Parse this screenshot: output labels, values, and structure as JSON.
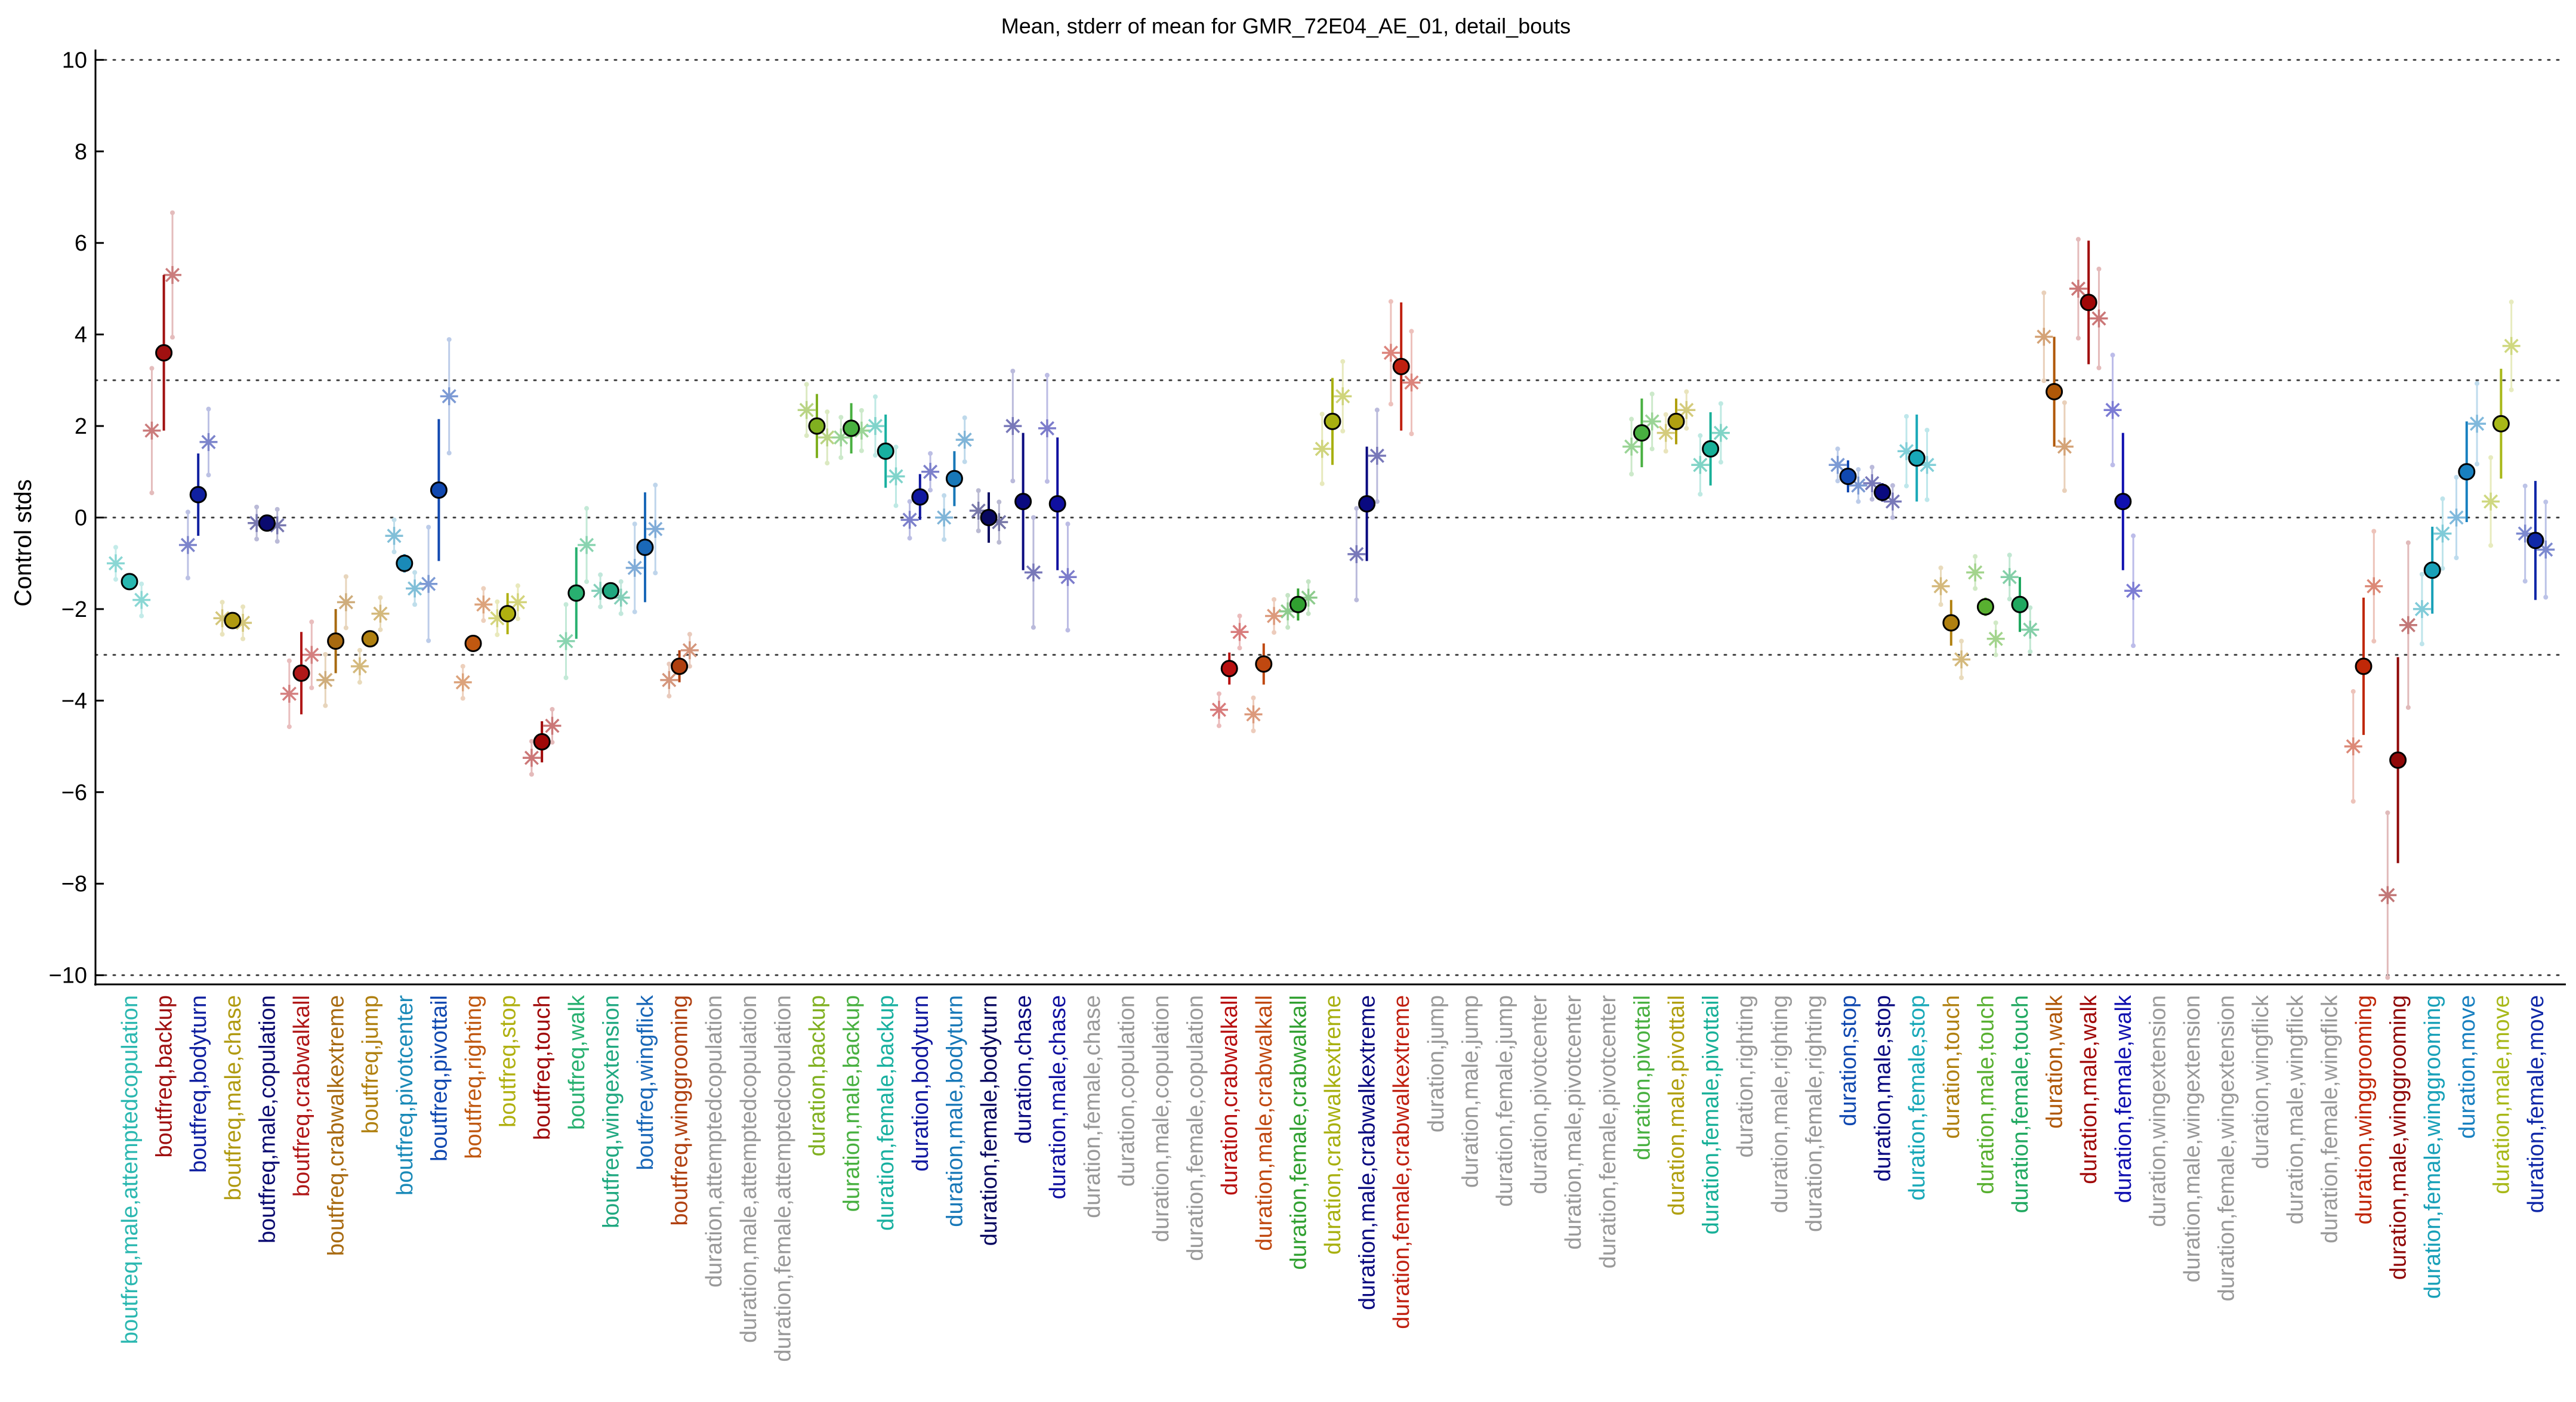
{
  "chart_data": {
    "type": "scatter",
    "title": "Mean, stderr of mean for GMR_72E04_AE_01, detail_bouts",
    "ylabel": "Control stds",
    "xlabel": "",
    "ylim": [
      -10.2,
      10.2
    ],
    "yticks": [
      -10,
      -8,
      -6,
      -4,
      -2,
      0,
      2,
      4,
      6,
      8,
      10
    ],
    "reference_lines": [
      -10,
      -3,
      0,
      3,
      10
    ],
    "grid": false,
    "legend": "none",
    "categories": [
      {
        "label": "boutfreq,male,attemptedcopulation",
        "color": "#2ab7b0",
        "mean": -1.4,
        "err": 0,
        "stars": [
          [
            -0.4,
            -1.0
          ],
          [
            0.35,
            -1.8
          ]
        ]
      },
      {
        "label": "boutfreq,backup",
        "color": "#a01010",
        "mean": 3.6,
        "err": 1.7,
        "stars": [
          [
            -0.35,
            1.9
          ],
          [
            0.25,
            5.3
          ]
        ]
      },
      {
        "label": "boutfreq,bodyturn",
        "color": "#1020a0",
        "mean": 0.5,
        "err": 0.9,
        "stars": [
          [
            -0.3,
            -0.6
          ],
          [
            0.3,
            1.65
          ]
        ]
      },
      {
        "label": "boutfreq,male,chase",
        "color": "#b09a10",
        "mean": -2.25,
        "err": 0.15,
        "stars": [
          [
            -0.3,
            -2.2
          ],
          [
            0.3,
            -2.3
          ]
        ]
      },
      {
        "label": "boutfreq,male,copulation",
        "color": "#0a0a70",
        "mean": -0.12,
        "err": 0.05,
        "stars": [
          [
            -0.3,
            -0.12
          ],
          [
            0.3,
            -0.17
          ]
        ]
      },
      {
        "label": "boutfreq,crabwalkall",
        "color": "#b01818",
        "mean": -3.4,
        "err": 0.9,
        "stars": [
          [
            -0.35,
            -3.85
          ],
          [
            0.3,
            -3.0
          ]
        ]
      },
      {
        "label": "boutfreq,crabwalkextreme",
        "color": "#a86a10",
        "mean": -2.7,
        "err": 0.7,
        "stars": [
          [
            -0.3,
            -3.55
          ],
          [
            0.3,
            -1.85
          ]
        ]
      },
      {
        "label": "boutfreq,jump",
        "color": "#b08010",
        "mean": -2.65,
        "err": 0.1,
        "stars": [
          [
            -0.3,
            -3.25
          ],
          [
            0.3,
            -2.1
          ]
        ]
      },
      {
        "label": "boutfreq,pivotcenter",
        "color": "#1a8ab8",
        "mean": -1.0,
        "err": 0.2,
        "stars": [
          [
            -0.3,
            -0.4
          ],
          [
            0.3,
            -1.55
          ]
        ]
      },
      {
        "label": "boutfreq,pivottail",
        "color": "#1048b0",
        "mean": 0.6,
        "err": 1.55,
        "stars": [
          [
            -0.3,
            -1.45
          ],
          [
            0.3,
            2.65
          ]
        ]
      },
      {
        "label": "boutfreq,righting",
        "color": "#c05810",
        "mean": -2.75,
        "err": 0.1,
        "stars": [
          [
            -0.3,
            -3.6
          ],
          [
            0.3,
            -1.9
          ]
        ]
      },
      {
        "label": "boutfreq,stop",
        "color": "#b0b010",
        "mean": -2.1,
        "err": 0.45,
        "stars": [
          [
            -0.3,
            -2.2
          ],
          [
            0.3,
            -1.85
          ]
        ]
      },
      {
        "label": "boutfreq,touch",
        "color": "#a00808",
        "mean": -4.9,
        "err": 0.45,
        "stars": [
          [
            -0.3,
            -5.25
          ],
          [
            0.3,
            -4.55
          ]
        ]
      },
      {
        "label": "boutfreq,walk",
        "color": "#28b070",
        "mean": -1.65,
        "err": 1.0,
        "stars": [
          [
            -0.3,
            -2.7
          ],
          [
            0.3,
            -0.6
          ]
        ]
      },
      {
        "label": "boutfreq,wingextension",
        "color": "#20a880",
        "mean": -1.6,
        "err": 0.15,
        "stars": [
          [
            -0.3,
            -1.6
          ],
          [
            0.3,
            -1.75
          ]
        ]
      },
      {
        "label": "boutfreq,wingflick",
        "color": "#1a68b8",
        "mean": -0.65,
        "err": 1.2,
        "stars": [
          [
            -0.3,
            -1.1
          ],
          [
            0.3,
            -0.25
          ]
        ]
      },
      {
        "label": "boutfreq,winggrooming",
        "color": "#b04010",
        "mean": -3.25,
        "err": 0.35,
        "stars": [
          [
            -0.3,
            -3.55
          ],
          [
            0.3,
            -2.9
          ]
        ]
      },
      {
        "label": "duration,attemptedcopulation",
        "color": "#999999"
      },
      {
        "label": "duration,male,attemptedcopulation",
        "color": "#999999"
      },
      {
        "label": "duration,female,attemptedcopulation",
        "color": "#999999"
      },
      {
        "label": "duration,backup",
        "color": "#80b020",
        "mean": 2.0,
        "err": 0.7,
        "stars": [
          [
            -0.3,
            2.35
          ],
          [
            0.3,
            1.75
          ]
        ]
      },
      {
        "label": "duration,male,backup",
        "color": "#48b040",
        "mean": 1.95,
        "err": 0.55,
        "stars": [
          [
            -0.3,
            1.75
          ],
          [
            0.3,
            1.9
          ]
        ]
      },
      {
        "label": "duration,female,backup",
        "color": "#18b0a0",
        "mean": 1.45,
        "err": 0.8,
        "stars": [
          [
            -0.3,
            2.0
          ],
          [
            0.3,
            0.9
          ]
        ]
      },
      {
        "label": "duration,bodyturn",
        "color": "#1018a0",
        "mean": 0.45,
        "err": 0.5,
        "stars": [
          [
            -0.3,
            -0.05
          ],
          [
            0.3,
            1.0
          ]
        ]
      },
      {
        "label": "duration,male,bodyturn",
        "color": "#1878b8",
        "mean": 0.85,
        "err": 0.6,
        "stars": [
          [
            -0.3,
            0.0
          ],
          [
            0.3,
            1.7
          ]
        ]
      },
      {
        "label": "duration,female,bodyturn",
        "color": "#080860",
        "mean": 0.0,
        "err": 0.55,
        "stars": [
          [
            -0.3,
            0.15
          ],
          [
            0.3,
            -0.1
          ]
        ]
      },
      {
        "label": "duration,chase",
        "color": "#0a0a80",
        "mean": 0.35,
        "err": 1.5,
        "stars": [
          [
            -0.3,
            2.0
          ],
          [
            0.3,
            -1.2
          ]
        ]
      },
      {
        "label": "duration,male,chase",
        "color": "#1010a0",
        "mean": 0.3,
        "err": 1.45,
        "stars": [
          [
            -0.3,
            1.95
          ],
          [
            0.3,
            -1.3
          ]
        ]
      },
      {
        "label": "duration,female,chase",
        "color": "#999999"
      },
      {
        "label": "duration,copulation",
        "color": "#999999"
      },
      {
        "label": "duration,male,copulation",
        "color": "#999999"
      },
      {
        "label": "duration,female,copulation",
        "color": "#999999"
      },
      {
        "label": "duration,crabwalkall",
        "color": "#b81010",
        "mean": -3.3,
        "err": 0.35,
        "stars": [
          [
            -0.3,
            -4.2
          ],
          [
            0.3,
            -2.5
          ]
        ]
      },
      {
        "label": "duration,male,crabwalkall",
        "color": "#c04810",
        "mean": -3.2,
        "err": 0.45,
        "stars": [
          [
            -0.3,
            -4.3
          ],
          [
            0.3,
            -2.15
          ]
        ]
      },
      {
        "label": "duration,female,crabwalkall",
        "color": "#30a030",
        "mean": -1.9,
        "err": 0.35,
        "stars": [
          [
            -0.3,
            -2.05
          ],
          [
            0.3,
            -1.75
          ]
        ]
      },
      {
        "label": "duration,crabwalkextreme",
        "color": "#a8b010",
        "mean": 2.1,
        "err": 0.95,
        "stars": [
          [
            -0.3,
            1.5
          ],
          [
            0.3,
            2.65
          ]
        ]
      },
      {
        "label": "duration,male,crabwalkextreme",
        "color": "#0a0a80",
        "mean": 0.3,
        "err": 1.25,
        "stars": [
          [
            -0.3,
            -0.8
          ],
          [
            0.3,
            1.35
          ]
        ]
      },
      {
        "label": "duration,female,crabwalkextreme",
        "color": "#c02010",
        "mean": 3.3,
        "err": 1.4,
        "stars": [
          [
            -0.3,
            3.6
          ],
          [
            0.3,
            2.95
          ]
        ]
      },
      {
        "label": "duration,jump",
        "color": "#999999"
      },
      {
        "label": "duration,male,jump",
        "color": "#999999"
      },
      {
        "label": "duration,female,jump",
        "color": "#999999"
      },
      {
        "label": "duration,pivotcenter",
        "color": "#999999"
      },
      {
        "label": "duration,male,pivotcenter",
        "color": "#999999"
      },
      {
        "label": "duration,female,pivotcenter",
        "color": "#999999"
      },
      {
        "label": "duration,pivottail",
        "color": "#48b040",
        "mean": 1.85,
        "err": 0.75,
        "stars": [
          [
            -0.3,
            1.55
          ],
          [
            0.3,
            2.1
          ]
        ]
      },
      {
        "label": "duration,male,pivottail",
        "color": "#b0a010",
        "mean": 2.1,
        "err": 0.5,
        "stars": [
          [
            -0.3,
            1.85
          ],
          [
            0.3,
            2.35
          ]
        ]
      },
      {
        "label": "duration,female,pivottail",
        "color": "#18b098",
        "mean": 1.5,
        "err": 0.8,
        "stars": [
          [
            -0.3,
            1.15
          ],
          [
            0.3,
            1.85
          ]
        ]
      },
      {
        "label": "duration,righting",
        "color": "#999999"
      },
      {
        "label": "duration,male,righting",
        "color": "#999999"
      },
      {
        "label": "duration,female,righting",
        "color": "#999999"
      },
      {
        "label": "duration,stop",
        "color": "#1048b0",
        "mean": 0.9,
        "err": 0.35,
        "stars": [
          [
            -0.3,
            1.15
          ],
          [
            0.3,
            0.7
          ]
        ]
      },
      {
        "label": "duration,male,stop",
        "color": "#0a0a80",
        "mean": 0.55,
        "err": 0.2,
        "stars": [
          [
            -0.3,
            0.75
          ],
          [
            0.3,
            0.35
          ]
        ]
      },
      {
        "label": "duration,female,stop",
        "color": "#18a8b8",
        "mean": 1.3,
        "err": 0.95,
        "stars": [
          [
            -0.3,
            1.45
          ],
          [
            0.3,
            1.15
          ]
        ]
      },
      {
        "label": "duration,touch",
        "color": "#b08010",
        "mean": -2.3,
        "err": 0.5,
        "stars": [
          [
            -0.3,
            -1.5
          ],
          [
            0.3,
            -3.1
          ]
        ]
      },
      {
        "label": "duration,male,touch",
        "color": "#58b030",
        "mean": -1.95,
        "err": 0.2,
        "stars": [
          [
            -0.3,
            -1.2
          ],
          [
            0.3,
            -2.65
          ]
        ]
      },
      {
        "label": "duration,female,touch",
        "color": "#20a860",
        "mean": -1.9,
        "err": 0.6,
        "stars": [
          [
            -0.3,
            -1.3
          ],
          [
            0.3,
            -2.45
          ]
        ]
      },
      {
        "label": "duration,walk",
        "color": "#b05808",
        "mean": 2.75,
        "err": 1.2,
        "stars": [
          [
            -0.3,
            3.95
          ],
          [
            0.3,
            1.55
          ]
        ]
      },
      {
        "label": "duration,male,walk",
        "color": "#a00808",
        "mean": 4.7,
        "err": 1.35,
        "stars": [
          [
            -0.3,
            5.0
          ],
          [
            0.3,
            4.35
          ]
        ]
      },
      {
        "label": "duration,female,walk",
        "color": "#1010b0",
        "mean": 0.35,
        "err": 1.5,
        "stars": [
          [
            -0.3,
            2.35
          ],
          [
            0.3,
            -1.6
          ]
        ]
      },
      {
        "label": "duration,wingextension",
        "color": "#999999"
      },
      {
        "label": "duration,male,wingextension",
        "color": "#999999"
      },
      {
        "label": "duration,female,wingextension",
        "color": "#999999"
      },
      {
        "label": "duration,wingflick",
        "color": "#999999"
      },
      {
        "label": "duration,male,wingflick",
        "color": "#999999"
      },
      {
        "label": "duration,female,wingflick",
        "color": "#999999"
      },
      {
        "label": "duration,winggrooming",
        "color": "#c02808",
        "mean": -3.25,
        "err": 1.5,
        "stars": [
          [
            -0.3,
            -5.0
          ],
          [
            0.3,
            -1.5
          ]
        ]
      },
      {
        "label": "duration,male,winggrooming",
        "color": "#900808",
        "mean": -5.3,
        "err": 2.25,
        "stars": [
          [
            -0.3,
            -8.25
          ],
          [
            0.3,
            -2.35
          ]
        ]
      },
      {
        "label": "duration,female,winggrooming",
        "color": "#18a0b8",
        "mean": -1.15,
        "err": 0.95,
        "stars": [
          [
            -0.3,
            -2.0
          ],
          [
            0.3,
            -0.35
          ]
        ]
      },
      {
        "label": "duration,move",
        "color": "#1880c0",
        "mean": 1.0,
        "err": 1.1,
        "stars": [
          [
            -0.3,
            0.0
          ],
          [
            0.3,
            2.05
          ]
        ]
      },
      {
        "label": "duration,male,move",
        "color": "#a8b818",
        "mean": 2.05,
        "err": 1.2,
        "stars": [
          [
            -0.3,
            0.35
          ],
          [
            0.3,
            3.75
          ]
        ]
      },
      {
        "label": "duration,female,move",
        "color": "#1028a8",
        "mean": -0.5,
        "err": 1.3,
        "stars": [
          [
            -0.3,
            -0.35
          ],
          [
            0.3,
            -0.7
          ]
        ]
      }
    ]
  }
}
